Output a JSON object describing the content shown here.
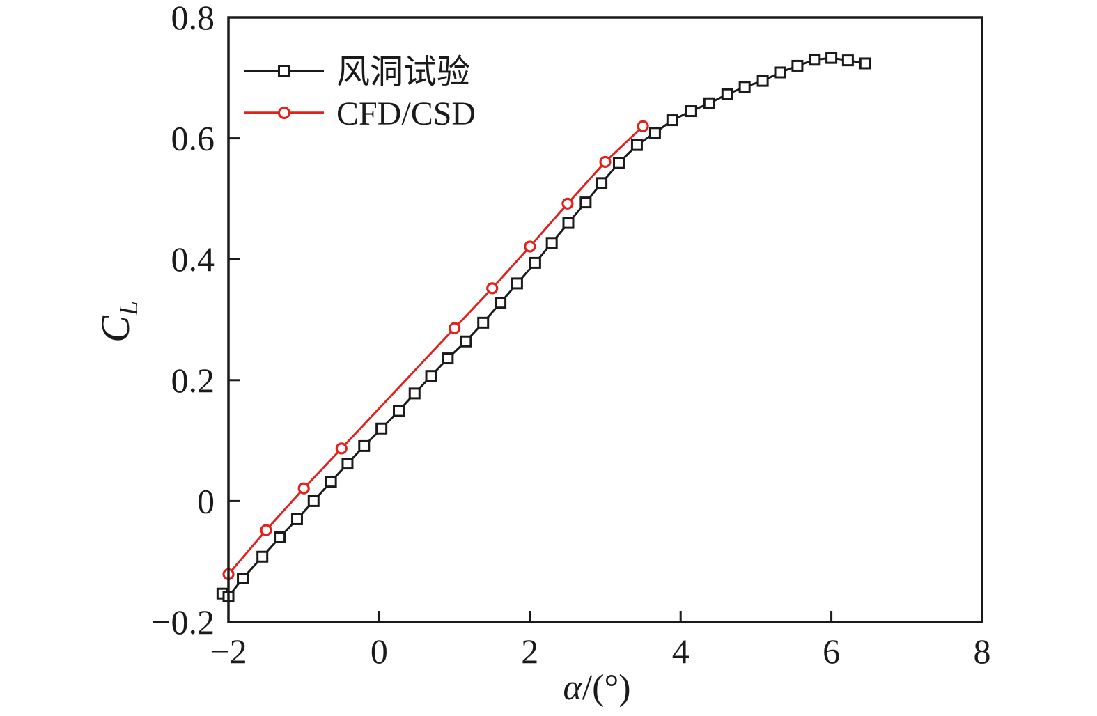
{
  "figure": {
    "x_label_symbol": "α",
    "x_label_unit": "/(°)",
    "y_label_main": "C",
    "y_label_sub": "L"
  },
  "chart_data": {
    "type": "line",
    "title": "",
    "xlabel": "α/(°)",
    "ylabel": "C_L",
    "xlim": [
      -2,
      8
    ],
    "ylim": [
      -0.2,
      0.8
    ],
    "grid": false,
    "legend_position": "upper-left",
    "axis_color": "#1a1a1a",
    "background_color": "#ffffff",
    "x_ticks": [
      {
        "value": -2,
        "label": "−2"
      },
      {
        "value": 0,
        "label": "0"
      },
      {
        "value": 2,
        "label": "2"
      },
      {
        "value": 4,
        "label": "4"
      },
      {
        "value": 6,
        "label": "6"
      },
      {
        "value": 8,
        "label": "8"
      }
    ],
    "y_ticks": [
      {
        "value": -0.2,
        "label": "−0.2"
      },
      {
        "value": 0,
        "label": "0"
      },
      {
        "value": 0.2,
        "label": "0.2"
      },
      {
        "value": 0.4,
        "label": "0.4"
      },
      {
        "value": 0.6,
        "label": "0.6"
      },
      {
        "value": 0.8,
        "label": "0.8"
      }
    ],
    "series": [
      {
        "name": "风洞试验",
        "key": "wind-tunnel-test",
        "color": "#1a1a1a",
        "marker": "square",
        "points": [
          [
            -2.08,
            -0.153
          ],
          [
            -2.0,
            -0.158
          ],
          [
            -1.81,
            -0.128
          ],
          [
            -1.55,
            -0.092
          ],
          [
            -1.32,
            -0.06
          ],
          [
            -1.09,
            -0.03
          ],
          [
            -0.87,
            0.0
          ],
          [
            -0.64,
            0.032
          ],
          [
            -0.42,
            0.062
          ],
          [
            -0.2,
            0.091
          ],
          [
            0.03,
            0.12
          ],
          [
            0.26,
            0.149
          ],
          [
            0.47,
            0.178
          ],
          [
            0.69,
            0.207
          ],
          [
            0.91,
            0.236
          ],
          [
            1.15,
            0.264
          ],
          [
            1.38,
            0.295
          ],
          [
            1.61,
            0.328
          ],
          [
            1.83,
            0.36
          ],
          [
            2.07,
            0.394
          ],
          [
            2.29,
            0.427
          ],
          [
            2.51,
            0.46
          ],
          [
            2.74,
            0.494
          ],
          [
            2.95,
            0.526
          ],
          [
            3.18,
            0.559
          ],
          [
            3.42,
            0.589
          ],
          [
            3.66,
            0.609
          ],
          [
            3.89,
            0.63
          ],
          [
            4.14,
            0.645
          ],
          [
            4.38,
            0.658
          ],
          [
            4.62,
            0.673
          ],
          [
            4.85,
            0.685
          ],
          [
            5.09,
            0.695
          ],
          [
            5.32,
            0.709
          ],
          [
            5.55,
            0.72
          ],
          [
            5.78,
            0.73
          ],
          [
            6.0,
            0.733
          ],
          [
            6.22,
            0.729
          ],
          [
            6.45,
            0.724
          ]
        ]
      },
      {
        "name": "CFD/CSD",
        "key": "cfd-csd",
        "color": "#e2211c",
        "marker": "circle",
        "points": [
          [
            -2.0,
            -0.121
          ],
          [
            -1.5,
            -0.048
          ],
          [
            -1.0,
            0.021
          ],
          [
            -0.5,
            0.087
          ],
          [
            1.0,
            0.286
          ],
          [
            1.5,
            0.352
          ],
          [
            2.0,
            0.421
          ],
          [
            2.5,
            0.492
          ],
          [
            3.0,
            0.561
          ],
          [
            3.5,
            0.62
          ]
        ]
      }
    ]
  }
}
